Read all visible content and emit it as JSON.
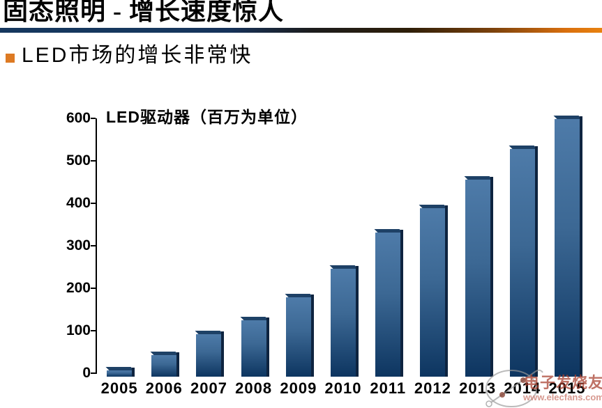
{
  "slide": {
    "title": "固态照明 - 增长速度惊人",
    "bullet_text": "LED市场的增长非常快"
  },
  "chart_data": {
    "type": "bar",
    "title": "LED驱动器（百万为单位）",
    "categories": [
      "2005",
      "2006",
      "2007",
      "2008",
      "2009",
      "2010",
      "2011",
      "2012",
      "2013",
      "2014",
      "2015"
    ],
    "values": [
      8,
      45,
      93,
      127,
      180,
      247,
      332,
      390,
      458,
      530,
      600
    ],
    "xlabel": "",
    "ylabel": "",
    "ylim": [
      0,
      600
    ],
    "yticks": [
      0,
      100,
      200,
      300,
      400,
      500,
      600
    ],
    "grid": false,
    "legend": false,
    "bar_style": "3d-gradient-blue"
  },
  "watermark": {
    "brand": "电子发烧友",
    "url": "www.elecfans.com",
    "logo": "electron-orbit-logo"
  },
  "colors": {
    "bullet": "#dd7a23",
    "bar_top": "#4e7ba9",
    "bar_bottom": "#0d3560",
    "bar_side": "#0e2440",
    "bar_bevel": "#1e4166",
    "divider_left": "#16375e",
    "divider_right": "#d96f0e",
    "watermark_text": "#a8402f",
    "watermark_url": "#cf8277",
    "watermark_logo_stroke": "#9a9a9a"
  }
}
